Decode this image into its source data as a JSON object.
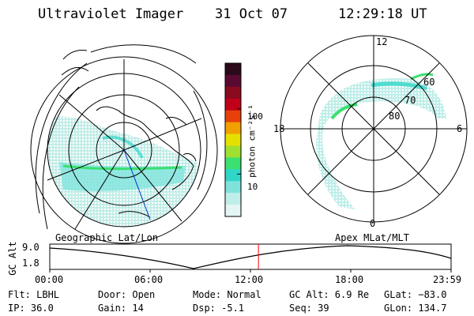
{
  "header": {
    "instrument": "Ultraviolet Imager",
    "date": "31 Oct 07",
    "time": "12:29:18 UT"
  },
  "geo_map": {
    "label": "Geographic Lat/Lon"
  },
  "apex_map": {
    "label": "Apex MLat/MLT",
    "mlt_labels": [
      "12",
      "18",
      "6",
      "0"
    ],
    "lat_labels": [
      "60",
      "70",
      "80"
    ]
  },
  "colorbar": {
    "unit_label": "photon cm⁻²s⁻¹",
    "ticks": [
      "100",
      "10"
    ],
    "colors": [
      "#2a0a1a",
      "#5a0a30",
      "#8a0a20",
      "#c00018",
      "#e8400a",
      "#f0a000",
      "#e6e000",
      "#a0e030",
      "#3ae070",
      "#30d6c8",
      "#7fe3dc",
      "#bfeee9",
      "#e4f6f4"
    ],
    "log_min": 0.35,
    "log_max": 2.7
  },
  "altitude_plot": {
    "ylabel": "GC Alt",
    "yticks": [
      "9.0",
      "1.8"
    ],
    "xticks": [
      "00:00",
      "06:00",
      "12:00",
      "18:00",
      "23:59"
    ],
    "current_time_fraction": 0.52,
    "current_marker_color": "#ff0000"
  },
  "info": {
    "filter": "Flt: LBHL",
    "ip": "IP: 36.0",
    "door": "Door: Open",
    "gain": "Gain: 14",
    "mode": "Mode: Normal",
    "dsp": "Dsp:    -5.1",
    "gc_alt": "GC Alt: 6.9 Re",
    "seq": "Seq: 39",
    "glat": "GLat: −83.0",
    "glon": "GLon: 134.7"
  }
}
